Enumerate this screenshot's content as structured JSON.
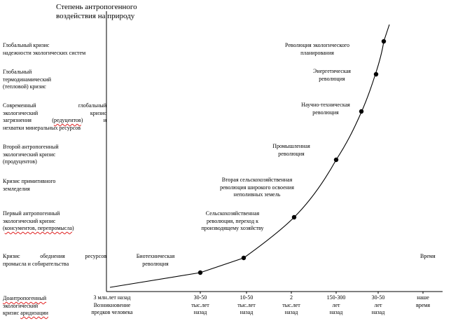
{
  "title_line1": "Степень антропогенного",
  "title_line2": "воздействия на природу",
  "time_label": "Время",
  "crises": [
    {
      "l1": "Глобальный кризис",
      "l2": "надежности экологических систем"
    },
    {
      "l1": "Глобальный",
      "l2": "термодинамический",
      "l3": "(тепловой) кризис"
    },
    {
      "l1": "Современный глобальный",
      "l2": "экологический кризис",
      "l3a": "загрязнения (",
      "l3b": "редуцентов",
      "l3c": ") и",
      "l4": "нехватки минеральных ресурсов"
    },
    {
      "l1": "Второй антропогенный",
      "l2": "экологический кризис",
      "l3": "(продуцентов)"
    },
    {
      "l1": "Кризис примитивного",
      "l2": "земледелия"
    },
    {
      "l1": "Первый антропогенный",
      "l2": "экологический кризис",
      "l3a": "(",
      "l3b": "консументов, перепромысла",
      "l3c": ")"
    },
    {
      "l1": "Кризис обеднения ресурсов",
      "l2": "промысла и собирательства"
    },
    {
      "l1a": "Доантропогенный",
      "l2": "экологический",
      "l3a": "кризис ",
      "l3b": "аридизации"
    }
  ],
  "revolutions": [
    {
      "l1": "Революция экологического",
      "l2": "планирования"
    },
    {
      "l1": "Энергетическая",
      "l2": "революция"
    },
    {
      "l1": "Научно-техническая",
      "l2": "революция"
    },
    {
      "l1": "Промышленная",
      "l2": "революция"
    },
    {
      "l1": "Вторая сельскохозяйственная",
      "l2": "революция широкого освоения",
      "l3": "неполивных земель"
    },
    {
      "l1": "Сельскохозяйственная",
      "l2": "революция, переход к",
      "l3": "производящему хозяйству"
    },
    {
      "l1": "Биотехническая",
      "l2": "революция"
    }
  ],
  "ticks": [
    {
      "l1": "3 млн.лет назад",
      "l2": "Возникновение",
      "l3": "предков человека"
    },
    {
      "l1": "30-50",
      "l2": "тыс.лет",
      "l3": "назад"
    },
    {
      "l1": "10-50",
      "l2": "тыс.лет",
      "l3": "назад"
    },
    {
      "l1": "2",
      "l2": "тыс.лет",
      "l3": "назад"
    },
    {
      "l1": "150-300",
      "l2": "лет",
      "l3": "назад"
    },
    {
      "l1": "30-50",
      "l2": "лет",
      "l3": "назад"
    },
    {
      "l1": "наше",
      "l2": "время"
    }
  ]
}
